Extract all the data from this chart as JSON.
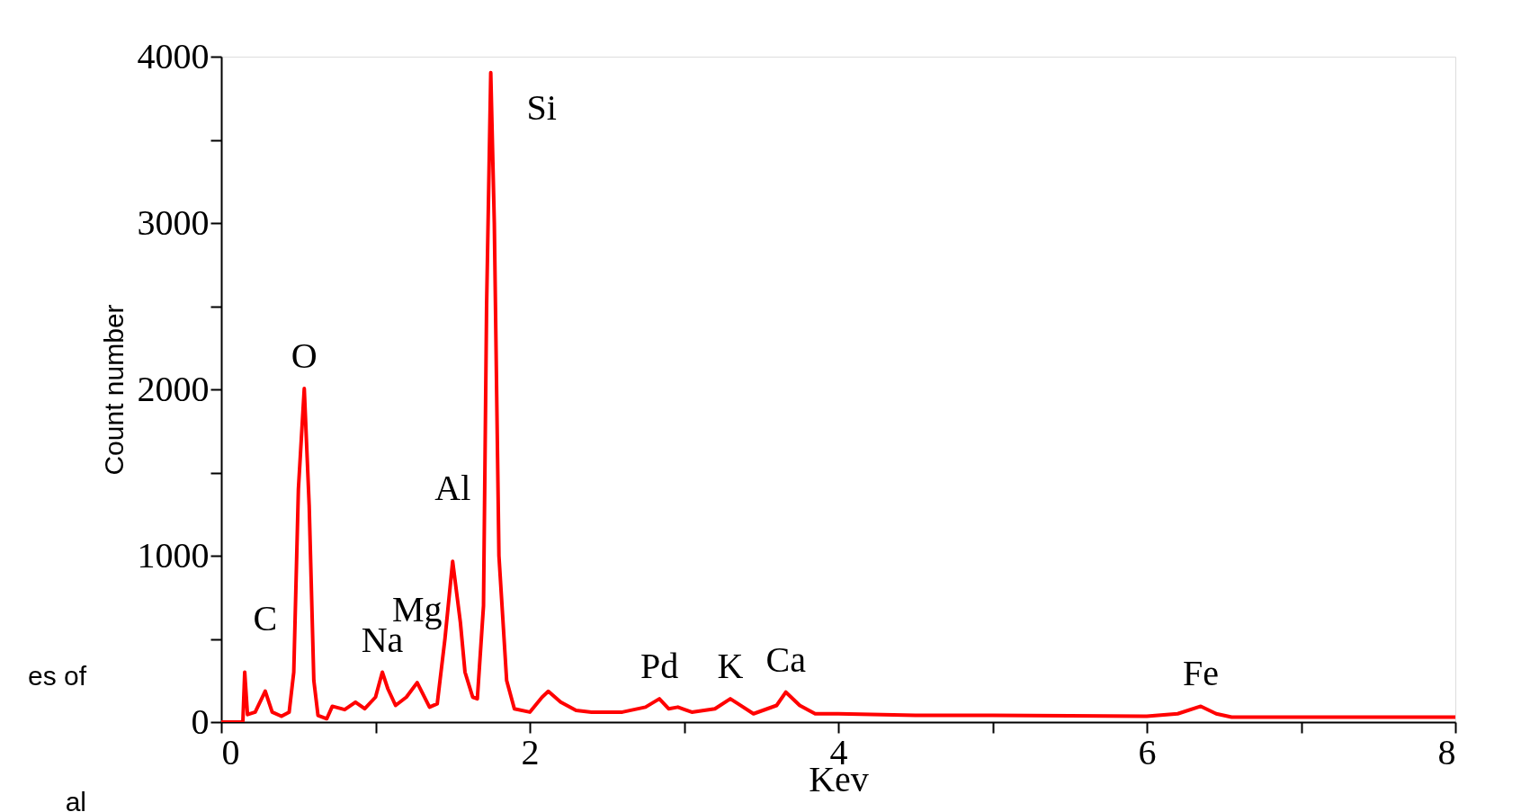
{
  "chart_data": {
    "type": "line",
    "xlabel": "Kev",
    "ylabel": "Count number",
    "xlim": [
      0,
      8
    ],
    "ylim": [
      0,
      4000
    ],
    "xticks": [
      0,
      {
        "value": 1,
        "label": null
      },
      2,
      {
        "value": 3,
        "label": null
      },
      4,
      {
        "value": 5,
        "label": null
      },
      6,
      {
        "value": 7,
        "label": null
      },
      8
    ],
    "yticks": [
      0,
      {
        "value": 500,
        "label": null
      },
      1000,
      {
        "value": 1500,
        "label": null
      },
      2000,
      {
        "value": 2500,
        "label": null
      },
      3000,
      {
        "value": 3500,
        "label": null
      },
      4000
    ],
    "grid": false,
    "marker": "none",
    "line_style": "solid",
    "series": [
      {
        "color": "#ff0000",
        "x": [
          0,
          0.14,
          0.152,
          0.17,
          0.22,
          0.285,
          0.33,
          0.39,
          0.44,
          0.47,
          0.5,
          0.538,
          0.57,
          0.6,
          0.627,
          0.684,
          0.72,
          0.8,
          0.87,
          0.93,
          1.0,
          1.044,
          1.08,
          1.13,
          1.2,
          1.27,
          1.35,
          1.4,
          1.45,
          1.5,
          1.55,
          1.58,
          1.63,
          1.66,
          1.7,
          1.72,
          1.747,
          1.77,
          1.8,
          1.85,
          1.9,
          2.0,
          2.08,
          2.12,
          2.2,
          2.3,
          2.4,
          2.6,
          2.75,
          2.84,
          2.9,
          2.96,
          3.05,
          3.2,
          3.3,
          3.35,
          3.45,
          3.6,
          3.66,
          3.75,
          3.85,
          4.0,
          4.5,
          5.0,
          5.5,
          6.0,
          6.2,
          6.35,
          6.45,
          6.55,
          7.0,
          7.5,
          8.0
        ],
        "values": [
          0,
          0,
          300,
          45,
          60,
          186,
          60,
          35,
          60,
          300,
          1400,
          2005,
          1300,
          250,
          40,
          20,
          95,
          75,
          120,
          80,
          150,
          300,
          200,
          100,
          150,
          237,
          90,
          110,
          500,
          966,
          600,
          300,
          150,
          140,
          700,
          2500,
          3904,
          3000,
          1000,
          250,
          80,
          60,
          150,
          185,
          120,
          70,
          60,
          60,
          90,
          140,
          80,
          90,
          60,
          80,
          140,
          110,
          50,
          100,
          180,
          100,
          50,
          50,
          40,
          40,
          38,
          35,
          50,
          95,
          50,
          30,
          30,
          30,
          30
        ]
      }
    ],
    "annotations": [
      {
        "text": "Si",
        "x": 1.747,
        "y": 3904
      },
      {
        "text": "O",
        "x": 0.538,
        "y": 2005
      },
      {
        "text": "C",
        "x": 0.285,
        "y": 186
      },
      {
        "text": "Na",
        "x": 1.044,
        "y": 300
      },
      {
        "text": "Mg",
        "x": 1.27,
        "y": 237
      },
      {
        "text": "Al",
        "x": 1.5,
        "y": 966
      },
      {
        "text": "Pd",
        "x": 2.84,
        "y": 140
      },
      {
        "text": "K",
        "x": 3.3,
        "y": 140
      },
      {
        "text": "Ca",
        "x": 3.66,
        "y": 180
      },
      {
        "text": "Fe",
        "x": 6.35,
        "y": 95
      },
      "es of",
      "al"
    ]
  }
}
